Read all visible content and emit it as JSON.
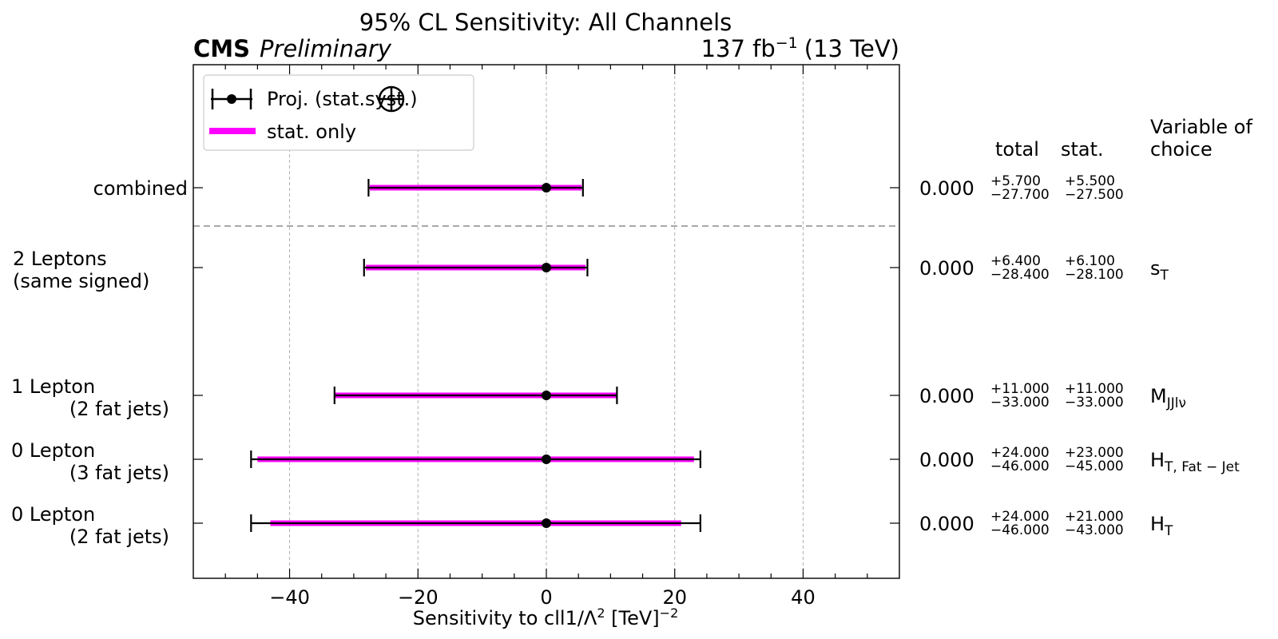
{
  "header": {
    "title": "95% CL Sensitivity: All Channels",
    "experiment": "CMS",
    "status": "Preliminary",
    "lumi": "137 fb",
    "lumi_exp": "−1",
    "energy": "(13 TeV)"
  },
  "legend": {
    "placement": "top-left",
    "entries": [
      {
        "label_pre": "Proj. (stat.",
        "label_post": "syst.)",
        "style": "marker-errorbar"
      },
      {
        "label": "stat. only",
        "style": "magenta-band"
      }
    ]
  },
  "table_headers": {
    "total": "total",
    "stat": "stat.",
    "variable_line1": "Variable of",
    "variable_line2": "choice"
  },
  "colors": {
    "stat_band": "#ff00ff",
    "marker": "#000000",
    "grid": "#b0b0b0",
    "separator": "#8c8c8c"
  },
  "chart_data": {
    "type": "scatter",
    "orientation": "horizontal",
    "xlabel": "Sensitivity to cll1/Λ",
    "xlabel_sup1": "2",
    "xlabel_unit": " [TeV]",
    "xlabel_sup2": "−2",
    "xlim": [
      -55,
      55
    ],
    "xticks": [
      -40,
      -20,
      0,
      20,
      40
    ],
    "xtick_labels": [
      "−40",
      "−20",
      "0",
      "20",
      "40"
    ],
    "grid": "vertical-dashed",
    "rows": [
      {
        "label_lines": [
          "combined"
        ],
        "label_align": "right",
        "position": 1.0,
        "value": 0.0,
        "value_text": "0.000",
        "total_up": 5.7,
        "total_dn": -27.7,
        "stat_up": 5.5,
        "stat_dn": -27.5,
        "total_up_text": "+5.700",
        "total_dn_text": "−27.700",
        "stat_up_text": "+5.500",
        "stat_dn_text": "−27.500",
        "var_main": "",
        "var_sub": ""
      },
      {
        "label_lines": [
          "2 Leptons",
          "(same signed)"
        ],
        "label_align": "left",
        "position": 2.25,
        "value": 0.0,
        "value_text": "0.000",
        "total_up": 6.4,
        "total_dn": -28.4,
        "stat_up": 6.1,
        "stat_dn": -28.1,
        "total_up_text": "+6.400",
        "total_dn_text": "−28.400",
        "stat_up_text": "+6.100",
        "stat_dn_text": "−28.100",
        "var_main": "s",
        "var_sub": "T"
      },
      {
        "label_lines": [
          "1 Lepton",
          "(2 fat jets)"
        ],
        "label_align": "split",
        "position": 4.25,
        "value": 0.0,
        "value_text": "0.000",
        "total_up": 11.0,
        "total_dn": -33.0,
        "stat_up": 11.0,
        "stat_dn": -33.0,
        "total_up_text": "+11.000",
        "total_dn_text": "−33.000",
        "stat_up_text": "+11.000",
        "stat_dn_text": "−33.000",
        "var_main": "M",
        "var_sub": "JJlν"
      },
      {
        "label_lines": [
          "0 Lepton",
          "(3 fat jets)"
        ],
        "label_align": "split",
        "position": 5.25,
        "value": 0.0,
        "value_text": "0.000",
        "total_up": 24.0,
        "total_dn": -46.0,
        "stat_up": 23.0,
        "stat_dn": -45.0,
        "total_up_text": "+24.000",
        "total_dn_text": "−46.000",
        "stat_up_text": "+23.000",
        "stat_dn_text": "−45.000",
        "var_main": "H",
        "var_sub": "T, Fat − Jet"
      },
      {
        "label_lines": [
          "0 Lepton",
          "(2 fat jets)"
        ],
        "label_align": "split",
        "position": 6.25,
        "value": 0.0,
        "value_text": "0.000",
        "total_up": 24.0,
        "total_dn": -46.0,
        "stat_up": 21.0,
        "stat_dn": -43.0,
        "total_up_text": "+24.000",
        "total_dn_text": "−46.000",
        "stat_up_text": "+21.000",
        "stat_dn_text": "−43.000",
        "var_main": "H",
        "var_sub": "T"
      }
    ],
    "separator_after_position": 1.6
  }
}
